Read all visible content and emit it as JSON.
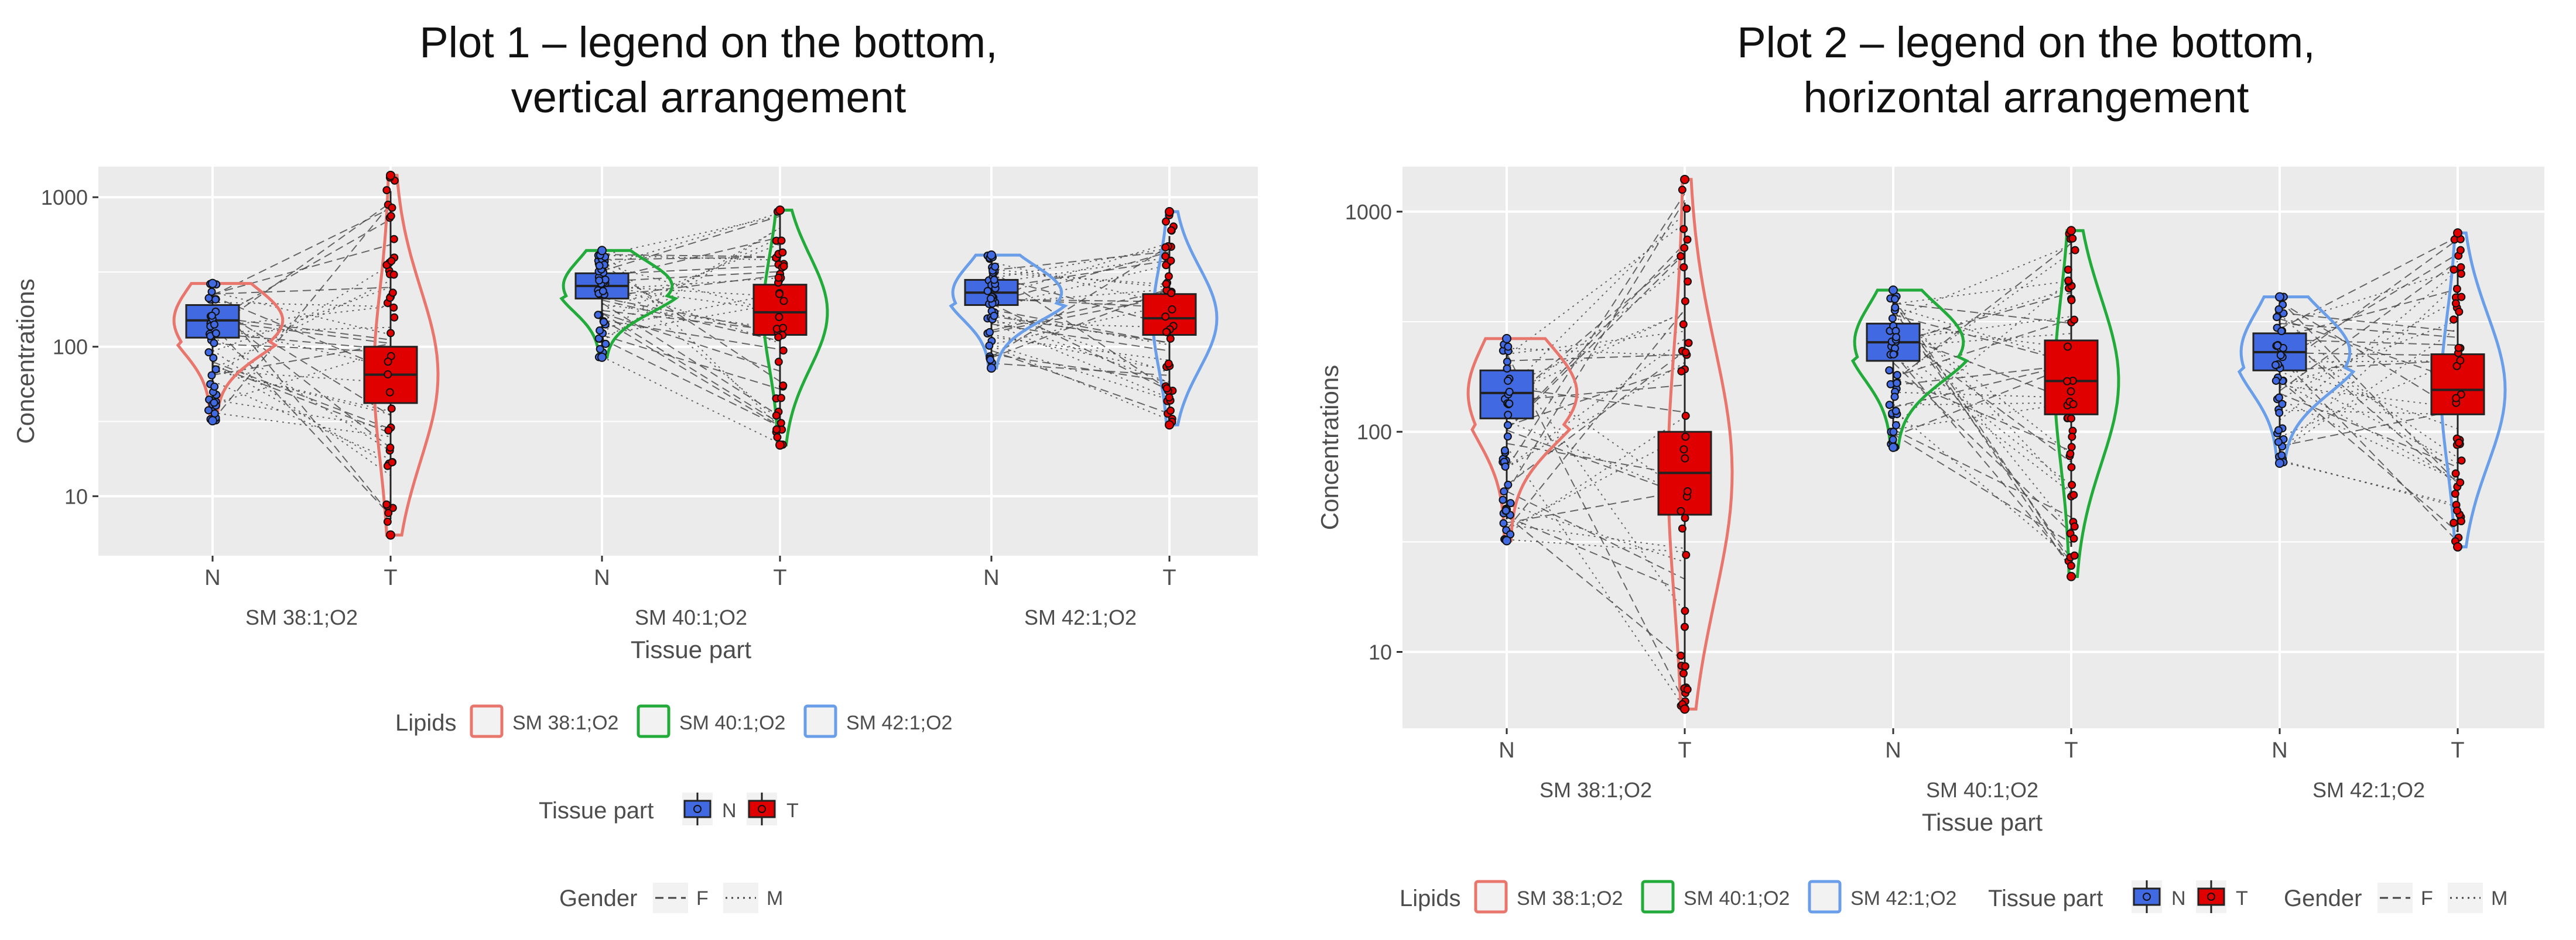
{
  "figure": {
    "left_title": [
      "Plot 1 – legend on the bottom,",
      "vertical arrangement"
    ],
    "right_title": [
      "Plot 2 – legend on the bottom,",
      "horizontal arrangement"
    ]
  },
  "colors": {
    "panel_bg": "#ebebeb",
    "grid": "#ffffff",
    "SM 38:1;O2": "#e8766d",
    "SM 40:1;O2": "#22aa3a",
    "SM 42:1;O2": "#6a9ee8",
    "N_fill": "#4169e1",
    "T_fill": "#e00000"
  },
  "chart_data": [
    {
      "type": "violin+box+paired-lines",
      "title": "",
      "xlabel": "Tissue part",
      "ylabel": "Concentrations",
      "y_scale": "log10",
      "ylim": [
        4,
        1600
      ],
      "y_ticks": [
        10,
        100,
        1000
      ],
      "y_tick_labels": [
        "10",
        "100",
        "1000"
      ],
      "facets": [
        "SM 38:1;O2",
        "SM 40:1;O2",
        "SM 42:1;O2"
      ],
      "x_categories": [
        "N",
        "T"
      ],
      "groups": [
        {
          "lipid": "SM 38:1;O2",
          "tissue": "N",
          "q1": 115,
          "median": 150,
          "q3": 190,
          "whisker_low": 40,
          "whisker_high": 260,
          "min": 32,
          "max": 265
        },
        {
          "lipid": "SM 38:1;O2",
          "tissue": "T",
          "q1": 42,
          "median": 65,
          "q3": 100,
          "whisker_low": 7,
          "whisker_high": 1100,
          "min": 5.5,
          "max": 1400
        },
        {
          "lipid": "SM 40:1;O2",
          "tissue": "N",
          "q1": 210,
          "median": 255,
          "q3": 310,
          "whisker_low": 90,
          "whisker_high": 430,
          "min": 85,
          "max": 440
        },
        {
          "lipid": "SM 40:1;O2",
          "tissue": "T",
          "q1": 120,
          "median": 170,
          "q3": 260,
          "whisker_low": 30,
          "whisker_high": 800,
          "min": 22,
          "max": 820
        },
        {
          "lipid": "SM 42:1;O2",
          "tissue": "N",
          "q1": 190,
          "median": 230,
          "q3": 280,
          "whisker_low": 80,
          "whisker_high": 400,
          "min": 72,
          "max": 410
        },
        {
          "lipid": "SM 42:1;O2",
          "tissue": "T",
          "q1": 120,
          "median": 155,
          "q3": 225,
          "whisker_low": 35,
          "whisker_high": 550,
          "min": 30,
          "max": 800
        }
      ],
      "legend_placement": "bottom",
      "legend_direction": "vertical",
      "legends": [
        {
          "title": "Lipids",
          "items": [
            "SM 38:1;O2",
            "SM 40:1;O2",
            "SM 42:1;O2"
          ]
        },
        {
          "title": "Tissue part",
          "items": [
            "N",
            "T"
          ]
        },
        {
          "title": "Gender",
          "items": [
            "F",
            "M"
          ]
        }
      ],
      "grid": true
    },
    {
      "type": "violin+box+paired-lines",
      "title": "",
      "xlabel": "Tissue part",
      "ylabel": "Concentrations",
      "y_scale": "log10",
      "ylim": [
        4.5,
        1600
      ],
      "y_ticks": [
        10,
        100,
        1000
      ],
      "y_tick_labels": [
        "10",
        "100",
        "1000"
      ],
      "facets": [
        "SM 38:1;O2",
        "SM 40:1;O2",
        "SM 42:1;O2"
      ],
      "x_categories": [
        "N",
        "T"
      ],
      "groups": [
        {
          "lipid": "SM 38:1;O2",
          "tissue": "N",
          "q1": 115,
          "median": 150,
          "q3": 190,
          "whisker_low": 40,
          "whisker_high": 260,
          "min": 32,
          "max": 265
        },
        {
          "lipid": "SM 38:1;O2",
          "tissue": "T",
          "q1": 42,
          "median": 65,
          "q3": 100,
          "whisker_low": 7,
          "whisker_high": 1100,
          "min": 5.5,
          "max": 1400
        },
        {
          "lipid": "SM 40:1;O2",
          "tissue": "N",
          "q1": 210,
          "median": 255,
          "q3": 310,
          "whisker_low": 90,
          "whisker_high": 430,
          "min": 85,
          "max": 440
        },
        {
          "lipid": "SM 40:1;O2",
          "tissue": "T",
          "q1": 120,
          "median": 170,
          "q3": 260,
          "whisker_low": 30,
          "whisker_high": 800,
          "min": 22,
          "max": 820
        },
        {
          "lipid": "SM 42:1;O2",
          "tissue": "N",
          "q1": 190,
          "median": 230,
          "q3": 280,
          "whisker_low": 80,
          "whisker_high": 400,
          "min": 72,
          "max": 410
        },
        {
          "lipid": "SM 42:1;O2",
          "tissue": "T",
          "q1": 120,
          "median": 155,
          "q3": 225,
          "whisker_low": 35,
          "whisker_high": 550,
          "min": 30,
          "max": 800
        }
      ],
      "legend_placement": "bottom",
      "legend_direction": "horizontal",
      "legends": [
        {
          "title": "Lipids",
          "items": [
            "SM 38:1;O2",
            "SM 40:1;O2",
            "SM 42:1;O2"
          ]
        },
        {
          "title": "Tissue part",
          "items": [
            "N",
            "T"
          ]
        },
        {
          "title": "Gender",
          "items": [
            "F",
            "M"
          ]
        }
      ],
      "grid": true
    }
  ]
}
